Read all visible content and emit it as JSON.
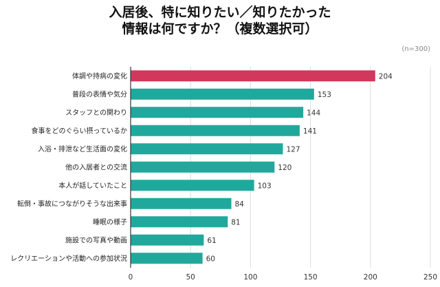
{
  "title": {
    "line1": "入居後、特に知りたい／知りたかった",
    "line2": "情報は何ですか？（複数選択可）"
  },
  "note": "(n=300)",
  "colors": {
    "highlight": "#d2375c",
    "bar": "#21a89c",
    "grid": "#dcdcdc",
    "axis": "#333333"
  },
  "chart_data": {
    "type": "bar",
    "orientation": "horizontal",
    "categories": [
      "体調や持病の変化",
      "普段の表情や気分",
      "スタッフとの関わり",
      "食事をどのぐらい摂っているか",
      "入浴・排泄など生活面の変化",
      "他の入居者との交流",
      "本人が話していたこと",
      "転倒・事故につながりそうな出来事",
      "睡眠の様子",
      "施設での写真や動画",
      "レクリエーションや活動への参加状況"
    ],
    "values": [
      204,
      153,
      144,
      141,
      127,
      120,
      103,
      84,
      81,
      61,
      60
    ],
    "xlim": [
      0,
      250
    ],
    "xticks": [
      0,
      50,
      100,
      150,
      200,
      250
    ],
    "grid": true,
    "highlight_index": 0
  }
}
